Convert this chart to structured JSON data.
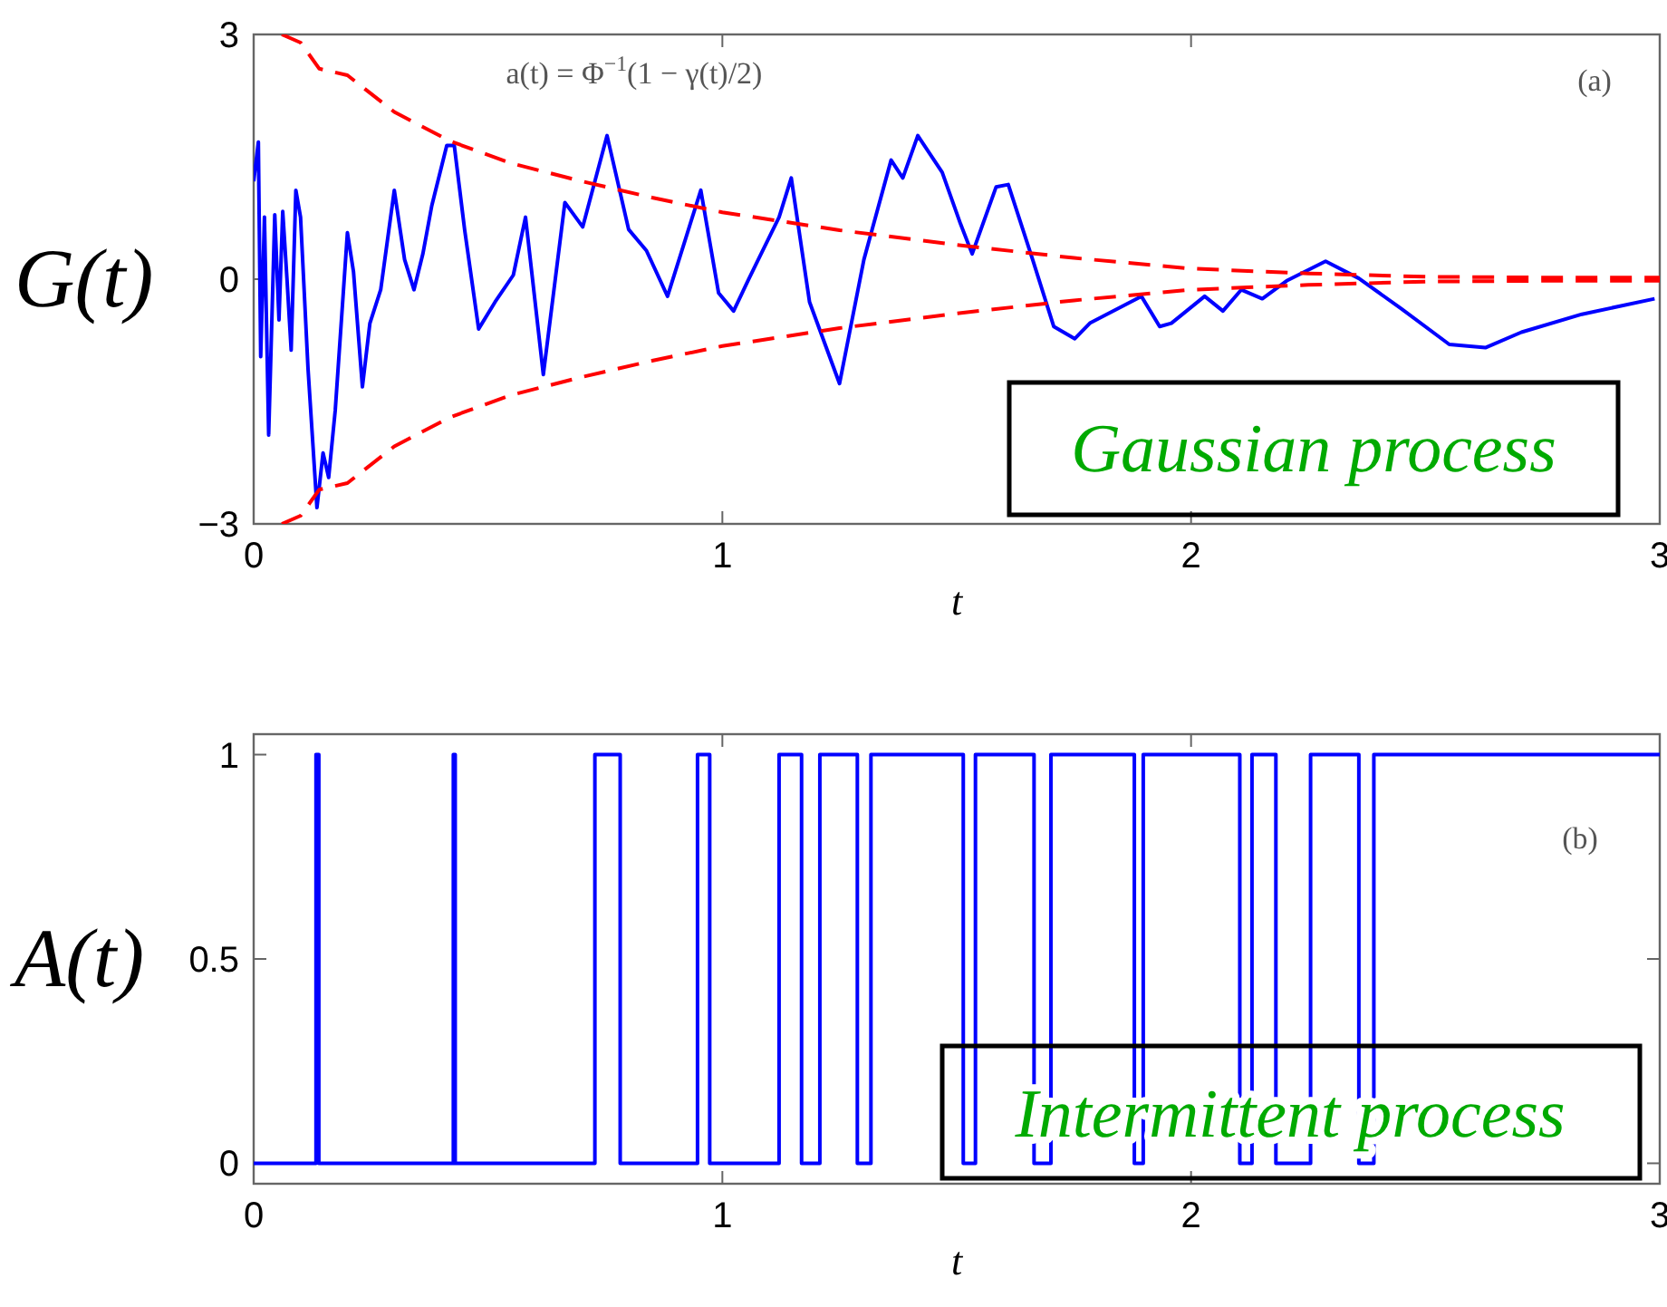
{
  "chart_data": [
    {
      "type": "line",
      "xlabel": "t",
      "ylabel": "G(t)",
      "xlim": [
        0,
        3
      ],
      "ylim": [
        -3,
        3
      ],
      "xticks": [
        0,
        1,
        2,
        3
      ],
      "yticks": [
        {
          "value": -3,
          "label": "−3"
        },
        0,
        3
      ],
      "grid": false,
      "annotations": [
        "a(t) = Φ$^{−1}$(1 − γ(t)/2)",
        "(a)",
        "Gaussian process"
      ],
      "series": [
        {
          "color": "#0000ff",
          "x": [
            0,
            0.01,
            0.015,
            0.023,
            0.032,
            0.045,
            0.054,
            0.062,
            0.071,
            0.08,
            0.09,
            0.1,
            0.116,
            0.135,
            0.148,
            0.16,
            0.174,
            0.2,
            0.213,
            0.232,
            0.248,
            0.271,
            0.3,
            0.322,
            0.342,
            0.361,
            0.38,
            0.412,
            0.428,
            0.45,
            0.48,
            0.515,
            0.554,
            0.58,
            0.618,
            0.664,
            0.702,
            0.754,
            0.8,
            0.838,
            0.883,
            0.954,
            0.992,
            1.024,
            1.057,
            1.121,
            1.147,
            1.186,
            1.25,
            1.302,
            1.36,
            1.385,
            1.417,
            1.469,
            1.508,
            1.533,
            1.584,
            1.61,
            1.662,
            1.707,
            1.752,
            1.784,
            1.894,
            1.933,
            1.958,
            2.029,
            2.068,
            2.107,
            2.152,
            2.204,
            2.287,
            2.358,
            2.448,
            2.551,
            2.628,
            2.705,
            2.834,
            2.989
          ],
          "values": [
            1.2,
            1.68,
            -0.95,
            0.76,
            -1.91,
            0.79,
            -0.5,
            0.83,
            0.01,
            -0.87,
            1.09,
            0.76,
            -1.1,
            -2.8,
            -2.13,
            -2.43,
            -1.61,
            0.57,
            0.09,
            -1.32,
            -0.54,
            -0.13,
            1.09,
            0.24,
            -0.13,
            0.31,
            0.9,
            1.64,
            1.64,
            0.61,
            -0.61,
            -0.28,
            0.05,
            0.76,
            -1.17,
            0.94,
            0.64,
            1.76,
            0.61,
            0.35,
            -0.21,
            1.09,
            -0.17,
            -0.39,
            0.01,
            0.76,
            1.24,
            -0.28,
            -1.28,
            0.24,
            1.46,
            1.24,
            1.76,
            1.31,
            0.68,
            0.31,
            1.13,
            1.16,
            0.24,
            -0.58,
            -0.73,
            -0.54,
            -0.21,
            -0.58,
            -0.54,
            -0.21,
            -0.39,
            -0.13,
            -0.24,
            -0.02,
            0.22,
            0.01,
            -0.36,
            -0.8,
            -0.84,
            -0.65,
            -0.43,
            -0.24
          ]
        },
        {
          "color": "#ff0000",
          "line_style": "dashed",
          "x": [
            0.06,
            0.1,
            0.14,
            0.2,
            0.3,
            0.42,
            0.55,
            0.7,
            0.85,
            1,
            1.25,
            1.5,
            1.75,
            2,
            2.25,
            2.5,
            2.75,
            3
          ],
          "values": [
            3,
            2.9,
            2.58,
            2.5,
            2.05,
            1.69,
            1.42,
            1.2,
            1.0,
            0.82,
            0.6,
            0.42,
            0.26,
            0.13,
            0.07,
            0.03,
            0.02,
            0.02
          ]
        },
        {
          "color": "#ff0000",
          "line_style": "dashed",
          "x": [
            0.06,
            0.1,
            0.14,
            0.2,
            0.3,
            0.42,
            0.55,
            0.7,
            0.85,
            1,
            1.25,
            1.5,
            1.75,
            2,
            2.25,
            2.5,
            2.75,
            3
          ],
          "values": [
            -3,
            -2.9,
            -2.58,
            -2.5,
            -2.05,
            -1.69,
            -1.42,
            -1.2,
            -1.0,
            -0.82,
            -0.6,
            -0.42,
            -0.26,
            -0.13,
            -0.07,
            -0.03,
            -0.02,
            -0.02
          ]
        }
      ]
    },
    {
      "type": "step",
      "xlabel": "t",
      "ylabel": "A(t)",
      "xlim": [
        0,
        3
      ],
      "ylim": [
        -0.05,
        1.05
      ],
      "xticks": [
        0,
        1,
        2,
        3
      ],
      "yticks": [
        0,
        0.5,
        1
      ],
      "grid": false,
      "annotations": [
        "(b)",
        "Intermittent process"
      ],
      "series": [
        {
          "color": "#0000ff",
          "x": [
            0,
            0.133,
            0.139,
            0.426,
            0.43,
            0.728,
            0.782,
            0.947,
            0.973,
            1.121,
            1.169,
            1.208,
            1.288,
            1.317,
            1.514,
            1.54,
            1.665,
            1.701,
            1.879,
            1.898,
            2.104,
            2.13,
            2.181,
            2.255,
            2.358,
            2.39,
            3
          ],
          "values": [
            0,
            1,
            0,
            1,
            0,
            1,
            0,
            1,
            0,
            1,
            0,
            1,
            0,
            1,
            0,
            1,
            0,
            1,
            0,
            1,
            0,
            1,
            0,
            1,
            0,
            1,
            1
          ]
        }
      ]
    }
  ]
}
